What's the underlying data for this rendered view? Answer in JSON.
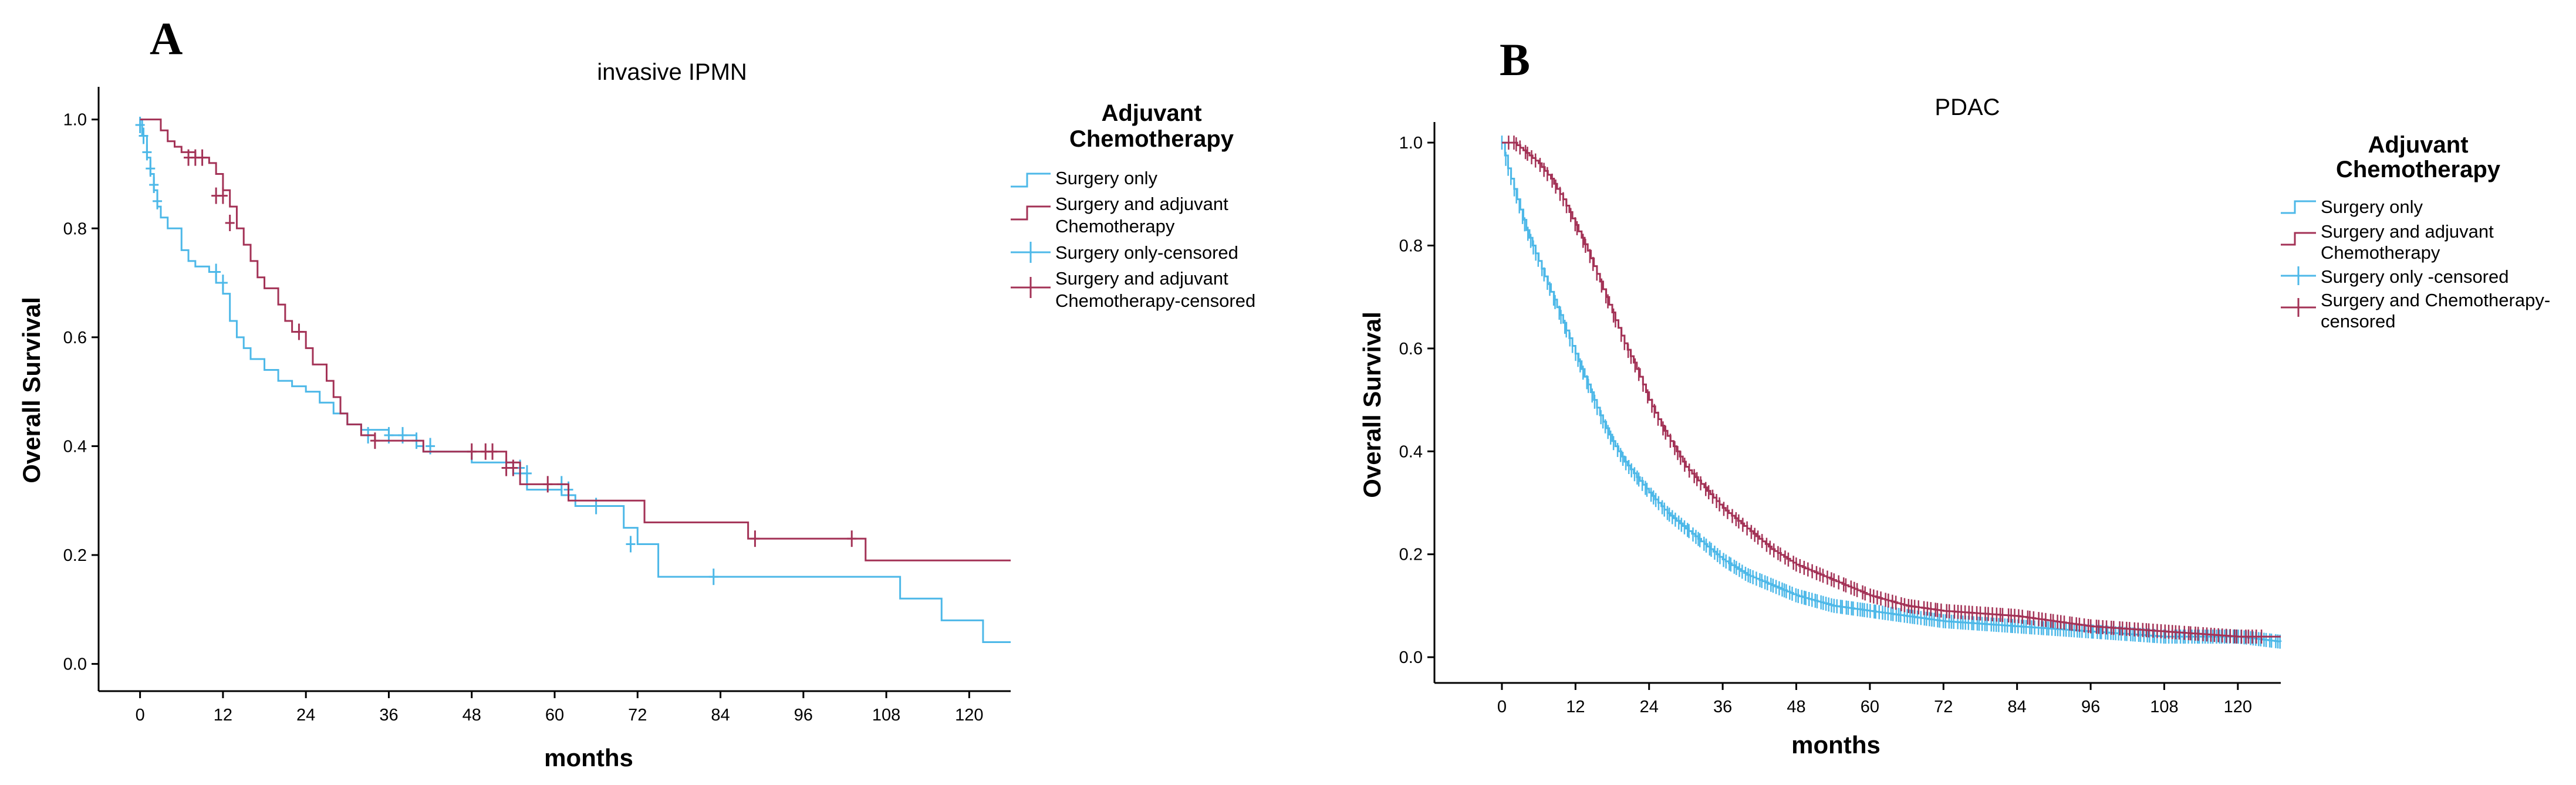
{
  "colors": {
    "surgery_only": "#4db8e8",
    "surgery_chemo": "#a33256",
    "background": "#ffffff",
    "axis": "#000000"
  },
  "chart_data": [
    {
      "type": "line",
      "panel": "A",
      "title": "invasive IPMN",
      "xlabel": "months",
      "ylabel": "Overall Survival",
      "xlim": [
        -6,
        126
      ],
      "ylim": [
        -0.05,
        1.06
      ],
      "xticks": [
        0,
        12,
        24,
        36,
        48,
        60,
        72,
        84,
        96,
        108,
        120
      ],
      "yticks": [
        0.0,
        0.2,
        0.4,
        0.6,
        0.8,
        1.0
      ],
      "grid": false,
      "legend": {
        "title_lines": [
          "Adjuvant",
          "Chemotherapy"
        ],
        "placement": "right",
        "entries": [
          {
            "label_lines": [
              "Surgery only"
            ],
            "marker": "step",
            "series": 0
          },
          {
            "label_lines": [
              "Surgery and adjuvant",
              "Chemotherapy"
            ],
            "marker": "step",
            "series": 1
          },
          {
            "label_lines": [
              "Surgery only-censored"
            ],
            "marker": "cross",
            "series": 0
          },
          {
            "label_lines": [
              "Surgery and adjuvant",
              "Chemotherapy-censored"
            ],
            "marker": "cross",
            "series": 1
          }
        ]
      },
      "series": [
        {
          "name": "Surgery only",
          "color": "#4db8e8",
          "steps": [
            [
              0,
              1.0
            ],
            [
              0.3,
              0.97
            ],
            [
              1,
              0.93
            ],
            [
              1.5,
              0.9
            ],
            [
              2,
              0.87
            ],
            [
              2.5,
              0.84
            ],
            [
              3,
              0.82
            ],
            [
              4,
              0.8
            ],
            [
              6,
              0.76
            ],
            [
              7,
              0.74
            ],
            [
              8,
              0.73
            ],
            [
              10,
              0.72
            ],
            [
              11,
              0.7
            ],
            [
              12,
              0.68
            ],
            [
              13,
              0.63
            ],
            [
              14,
              0.6
            ],
            [
              15,
              0.58
            ],
            [
              16,
              0.56
            ],
            [
              18,
              0.54
            ],
            [
              20,
              0.52
            ],
            [
              22,
              0.51
            ],
            [
              24,
              0.5
            ],
            [
              26,
              0.48
            ],
            [
              28,
              0.46
            ],
            [
              30,
              0.44
            ],
            [
              32,
              0.43
            ],
            [
              36,
              0.42
            ],
            [
              40,
              0.4
            ],
            [
              41,
              0.39
            ],
            [
              48,
              0.37
            ],
            [
              54,
              0.35
            ],
            [
              56,
              0.32
            ],
            [
              61,
              0.31
            ],
            [
              63,
              0.29
            ],
            [
              70,
              0.25
            ],
            [
              72,
              0.22
            ],
            [
              75,
              0.16
            ],
            [
              110,
              0.12
            ],
            [
              116,
              0.08
            ],
            [
              122,
              0.04
            ],
            [
              126,
              0.04
            ]
          ],
          "censored": [
            [
              0,
              0.99
            ],
            [
              0.5,
              0.97
            ],
            [
              1,
              0.94
            ],
            [
              1.5,
              0.91
            ],
            [
              2,
              0.88
            ],
            [
              2.5,
              0.85
            ],
            [
              11,
              0.72
            ],
            [
              12,
              0.7
            ],
            [
              33,
              0.42
            ],
            [
              36,
              0.42
            ],
            [
              38,
              0.42
            ],
            [
              40,
              0.41
            ],
            [
              42,
              0.4
            ],
            [
              55,
              0.36
            ],
            [
              56,
              0.35
            ],
            [
              61,
              0.33
            ],
            [
              62,
              0.32
            ],
            [
              66,
              0.29
            ],
            [
              71,
              0.22
            ],
            [
              83,
              0.16
            ]
          ]
        },
        {
          "name": "Surgery and adjuvant Chemotherapy",
          "color": "#a33256",
          "steps": [
            [
              0,
              1.0
            ],
            [
              2,
              1.0
            ],
            [
              3,
              0.98
            ],
            [
              4,
              0.96
            ],
            [
              5,
              0.95
            ],
            [
              6,
              0.94
            ],
            [
              8,
              0.93
            ],
            [
              9,
              0.93
            ],
            [
              10,
              0.92
            ],
            [
              11,
              0.9
            ],
            [
              12,
              0.87
            ],
            [
              13,
              0.84
            ],
            [
              14,
              0.8
            ],
            [
              15,
              0.77
            ],
            [
              16,
              0.74
            ],
            [
              17,
              0.71
            ],
            [
              18,
              0.69
            ],
            [
              20,
              0.66
            ],
            [
              21,
              0.63
            ],
            [
              22,
              0.61
            ],
            [
              24,
              0.58
            ],
            [
              25,
              0.55
            ],
            [
              27,
              0.52
            ],
            [
              28,
              0.49
            ],
            [
              29,
              0.46
            ],
            [
              30,
              0.44
            ],
            [
              32,
              0.42
            ],
            [
              34,
              0.41
            ],
            [
              36,
              0.41
            ],
            [
              41,
              0.39
            ],
            [
              48,
              0.39
            ],
            [
              53,
              0.37
            ],
            [
              55,
              0.33
            ],
            [
              62,
              0.3
            ],
            [
              73,
              0.26
            ],
            [
              88,
              0.23
            ],
            [
              105,
              0.19
            ],
            [
              126,
              0.19
            ]
          ],
          "censored": [
            [
              7,
              0.93
            ],
            [
              8,
              0.93
            ],
            [
              9,
              0.93
            ],
            [
              11,
              0.86
            ],
            [
              12,
              0.86
            ],
            [
              13,
              0.81
            ],
            [
              23,
              0.61
            ],
            [
              34,
              0.41
            ],
            [
              48,
              0.39
            ],
            [
              50,
              0.39
            ],
            [
              51,
              0.39
            ],
            [
              53,
              0.36
            ],
            [
              54,
              0.36
            ],
            [
              59,
              0.33
            ],
            [
              89,
              0.23
            ],
            [
              103,
              0.23
            ]
          ]
        }
      ]
    },
    {
      "type": "line",
      "panel": "B",
      "title": "PDAC",
      "xlabel": "months",
      "ylabel": "Overall Survival",
      "xlim": [
        -11,
        127
      ],
      "ylim": [
        -0.05,
        1.04
      ],
      "xticks": [
        0,
        12,
        24,
        36,
        48,
        60,
        72,
        84,
        96,
        108,
        120
      ],
      "yticks": [
        0.0,
        0.2,
        0.4,
        0.6,
        0.8,
        1.0
      ],
      "grid": false,
      "legend": {
        "title_lines": [
          "Adjuvant",
          "Chemotherapy"
        ],
        "placement": "right",
        "entries": [
          {
            "label_lines": [
              "Surgery only"
            ],
            "marker": "step",
            "series": 0
          },
          {
            "label_lines": [
              "Surgery and adjuvant",
              "Chemotherapy"
            ],
            "marker": "step",
            "series": 1
          },
          {
            "label_lines": [
              "Surgery only -censored"
            ],
            "marker": "cross",
            "series": 0
          },
          {
            "label_lines": [
              "Surgery and Chemotherapy-",
              "censored"
            ],
            "marker": "cross",
            "series": 1
          }
        ]
      },
      "series": [
        {
          "name": "Surgery only",
          "color": "#4db8e8",
          "curve": [
            [
              0,
              1.0
            ],
            [
              1,
              0.95
            ],
            [
              2,
              0.91
            ],
            [
              3,
              0.87
            ],
            [
              4,
              0.83
            ],
            [
              6,
              0.77
            ],
            [
              8,
              0.71
            ],
            [
              10,
              0.65
            ],
            [
              12,
              0.59
            ],
            [
              14,
              0.53
            ],
            [
              16,
              0.47
            ],
            [
              18,
              0.42
            ],
            [
              20,
              0.38
            ],
            [
              22,
              0.35
            ],
            [
              24,
              0.32
            ],
            [
              27,
              0.28
            ],
            [
              30,
              0.25
            ],
            [
              33,
              0.22
            ],
            [
              36,
              0.19
            ],
            [
              40,
              0.16
            ],
            [
              44,
              0.14
            ],
            [
              48,
              0.12
            ],
            [
              54,
              0.1
            ],
            [
              60,
              0.09
            ],
            [
              66,
              0.08
            ],
            [
              72,
              0.07
            ],
            [
              84,
              0.06
            ],
            [
              96,
              0.05
            ],
            [
              108,
              0.04
            ],
            [
              120,
              0.04
            ],
            [
              127,
              0.03
            ]
          ],
          "censor_density": 2.2,
          "censor_from": 0,
          "censor_to": 127
        },
        {
          "name": "Surgery and adjuvant Chemotherapy",
          "color": "#a33256",
          "curve": [
            [
              0,
              1.0
            ],
            [
              2,
              1.0
            ],
            [
              4,
              0.98
            ],
            [
              6,
              0.96
            ],
            [
              8,
              0.93
            ],
            [
              10,
              0.89
            ],
            [
              12,
              0.84
            ],
            [
              14,
              0.79
            ],
            [
              16,
              0.73
            ],
            [
              18,
              0.67
            ],
            [
              20,
              0.61
            ],
            [
              22,
              0.56
            ],
            [
              24,
              0.5
            ],
            [
              26,
              0.45
            ],
            [
              28,
              0.41
            ],
            [
              30,
              0.37
            ],
            [
              33,
              0.33
            ],
            [
              36,
              0.29
            ],
            [
              40,
              0.25
            ],
            [
              44,
              0.21
            ],
            [
              48,
              0.18
            ],
            [
              54,
              0.15
            ],
            [
              60,
              0.12
            ],
            [
              66,
              0.1
            ],
            [
              72,
              0.09
            ],
            [
              84,
              0.08
            ],
            [
              96,
              0.06
            ],
            [
              108,
              0.05
            ],
            [
              120,
              0.04
            ],
            [
              127,
              0.04
            ]
          ],
          "censor_density": 1.6,
          "censor_from": 1,
          "censor_to": 124
        }
      ]
    }
  ]
}
